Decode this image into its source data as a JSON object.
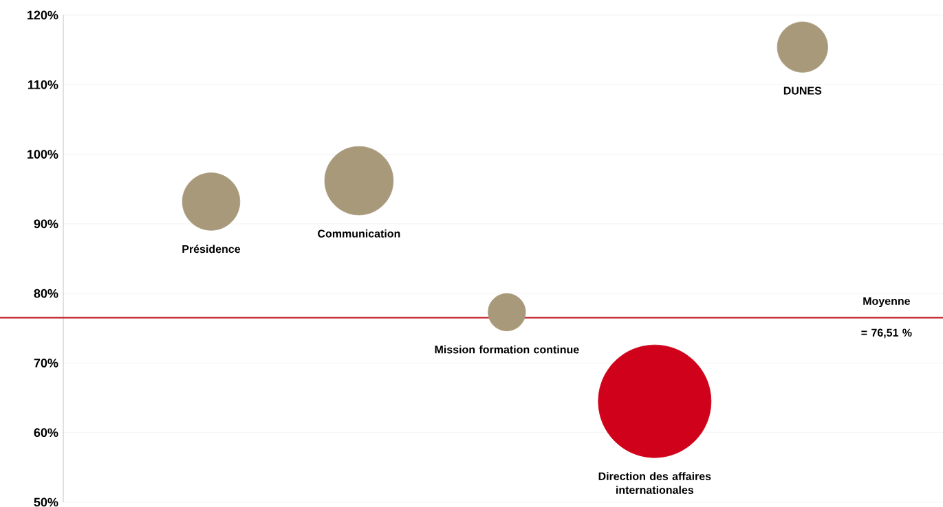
{
  "chart_data": {
    "type": "bubble",
    "categories": [
      "Présidence",
      "Communication",
      "Mission formation continue",
      "Direction des affaires internationales",
      "DUNES"
    ],
    "values": [
      93.2,
      96.2,
      77.3,
      64.5,
      115.4
    ],
    "sizes": [
      0.26,
      0.37,
      0.11,
      1,
      0.2
    ],
    "colors": [
      "#a8997b",
      "#a8997b",
      "#a8997b",
      "#d0021b",
      "#a8997b"
    ],
    "ylim": [
      50,
      120
    ],
    "yticks": [
      {
        "value": 50,
        "label": "50%"
      },
      {
        "value": 60,
        "label": "60%"
      },
      {
        "value": 70,
        "label": "70%"
      },
      {
        "value": 80,
        "label": "80%"
      },
      {
        "value": 90,
        "label": "90%"
      },
      {
        "value": 100,
        "label": "100%"
      },
      {
        "value": 110,
        "label": "110%"
      },
      {
        "value": 120,
        "label": "120%"
      }
    ],
    "grid": "y",
    "ref_lines": [
      {
        "axis": "y",
        "value": 76.51,
        "label": "Moyenne = 76,51 %",
        "color": "#c0202a"
      }
    ]
  }
}
